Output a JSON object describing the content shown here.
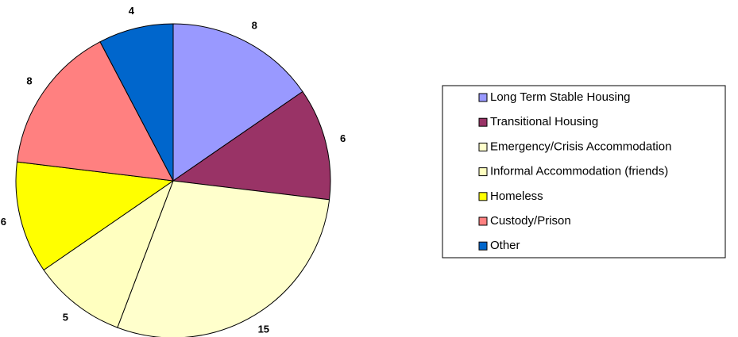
{
  "chart_data": {
    "type": "pie",
    "categories": [
      "Long Term Stable Housing",
      "Transitional Housing",
      "Emergency/Crisis Accommodation",
      "Informal Accommodation (friends)",
      "Homeless",
      "Custody/Prison",
      "Other"
    ],
    "values": [
      8,
      6,
      15,
      5,
      6,
      8,
      4
    ],
    "colors": [
      "#9999ff",
      "#993366",
      "#ffffcc",
      "#ffffc0",
      "#ffff00",
      "#ff8080",
      "#0066cc"
    ],
    "legend": "right"
  }
}
